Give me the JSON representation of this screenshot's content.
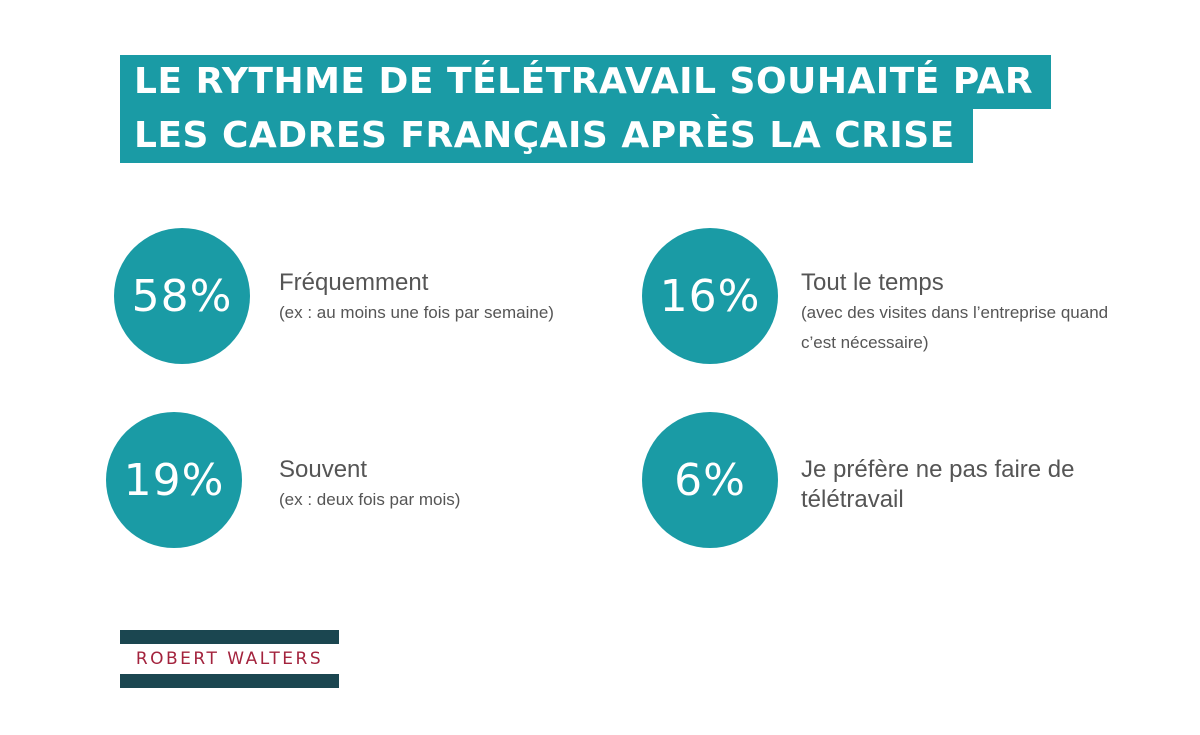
{
  "title": {
    "line1": "LE RYTHME DE TÉLÉTRAVAIL SOUHAITÉ PAR",
    "line2": "LES CADRES FRANÇAIS APRÈS LA CRISE"
  },
  "stats": [
    {
      "percent": "58%",
      "label": "Fréquemment",
      "sub": "(ex : au moins une fois par semaine)"
    },
    {
      "percent": "16%",
      "label": "Tout le temps",
      "sub": "(avec des visites dans l’entreprise quand c’est nécessaire)"
    },
    {
      "percent": "19%",
      "label": "Souvent",
      "sub": "(ex : deux fois par mois)"
    },
    {
      "percent": "6%",
      "label": "Je préfère ne pas faire de télétravail",
      "sub": ""
    }
  ],
  "logo": {
    "text": "ROBERT WALTERS"
  },
  "colors": {
    "accent": "#1a9ba5",
    "logo_bar": "#1b4650",
    "logo_text": "#a3233d",
    "body_text": "#555555"
  }
}
